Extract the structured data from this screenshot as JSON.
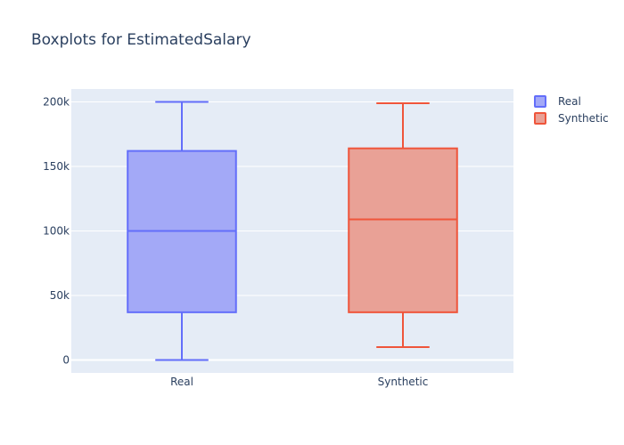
{
  "chart_data": {
    "type": "box",
    "title": "Boxplots for EstimatedSalary",
    "categories": [
      "Real",
      "Synthetic"
    ],
    "ylim": [
      -10000,
      210000
    ],
    "yticks": [
      0,
      50000,
      100000,
      150000,
      200000
    ],
    "ytick_labels": [
      "0",
      "50k",
      "100k",
      "150k",
      "200k"
    ],
    "grid": true,
    "legend_position": "top-right",
    "series": [
      {
        "name": "Real",
        "min": 0,
        "q1": 37000,
        "median": 100000,
        "q3": 162000,
        "max": 200000,
        "stroke": "#636efa",
        "fill": "#a3a9f7"
      },
      {
        "name": "Synthetic",
        "min": 10000,
        "q1": 37000,
        "median": 109000,
        "q3": 164000,
        "max": 199000,
        "stroke": "#ef553b",
        "fill": "#e9a196"
      }
    ]
  },
  "colors": {
    "plot_bg": "#e5ecf6",
    "grid": "#ffffff",
    "text": "#2a3f5f"
  }
}
